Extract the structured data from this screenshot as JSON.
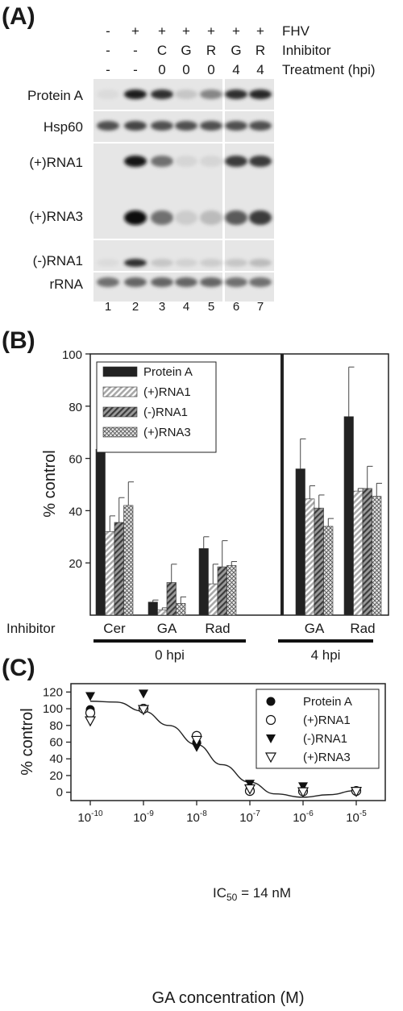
{
  "panels": {
    "a": "(A)",
    "b": "(B)",
    "c": "(C)"
  },
  "blot": {
    "header_rows": [
      {
        "label": "FHV",
        "cells": [
          "-",
          "+",
          "+",
          "+",
          "+",
          "+",
          "+"
        ]
      },
      {
        "label": "Inhibitor",
        "cells": [
          "-",
          "-",
          "C",
          "G",
          "R",
          "G",
          "R"
        ]
      },
      {
        "label": "Treatment (hpi)",
        "cells": [
          "-",
          "-",
          "0",
          "0",
          "0",
          "4",
          "4"
        ]
      }
    ],
    "row_labels": [
      "Protein A",
      "Hsp60",
      "(+)RNA1",
      "(+)RNA3",
      "(-)RNA1",
      "rRNA"
    ],
    "lanes": [
      "1",
      "2",
      "3",
      "4",
      "5",
      "6",
      "7"
    ]
  },
  "chart_data": [
    {
      "type": "bar",
      "panel": "B",
      "ylabel": "% control",
      "ylim": [
        0,
        100
      ],
      "yticks": [
        20,
        40,
        60,
        80,
        100
      ],
      "legend": "top-left",
      "inhibitor_label": "Inhibitor",
      "categories": [
        "Cer",
        "GA",
        "Rad",
        "GA",
        "Rad"
      ],
      "groups": [
        {
          "label": "0 hpi",
          "categories": [
            "Cer",
            "GA",
            "Rad"
          ]
        },
        {
          "label": "4 hpi",
          "categories": [
            "GA",
            "Rad"
          ]
        }
      ],
      "series": [
        {
          "name": "Protein A",
          "color": "#222222",
          "pattern": "solid",
          "values": [
            63.5,
            5,
            25.5,
            56,
            76
          ],
          "errors": [
            2.5,
            0.8,
            4.5,
            11.5,
            19
          ]
        },
        {
          "name": "(+)RNA1",
          "color": "#d8d8d8",
          "pattern": "diagonal-light",
          "values": [
            32,
            2,
            12,
            44.5,
            47.5
          ],
          "errors": [
            6,
            0.8,
            7.5,
            5,
            1
          ]
        },
        {
          "name": "(-)RNA1",
          "color": "#7a7a7a",
          "pattern": "diagonal-dark",
          "values": [
            35.5,
            12.5,
            18.5,
            41,
            48.5
          ],
          "errors": [
            9.5,
            7,
            10,
            5,
            8.5
          ]
        },
        {
          "name": "(+)RNA3",
          "color": "#cfcfcf",
          "pattern": "crosshatch",
          "values": [
            42,
            4.5,
            19,
            34,
            45.5
          ],
          "errors": [
            9,
            2.5,
            1.5,
            3,
            5
          ]
        }
      ]
    },
    {
      "type": "scatter",
      "panel": "C",
      "xlabel": "GA concentration (M)",
      "ylabel": "% control",
      "xscale": "log",
      "xlim": [
        1e-10,
        1e-05
      ],
      "xticks": [
        {
          "base": "10",
          "exp": "-10"
        },
        {
          "base": "10",
          "exp": "-9"
        },
        {
          "base": "10",
          "exp": "-8"
        },
        {
          "base": "10",
          "exp": "-7"
        },
        {
          "base": "10",
          "exp": "-6"
        },
        {
          "base": "10",
          "exp": "-5"
        }
      ],
      "ylim": [
        0,
        120
      ],
      "yticks": [
        0,
        20,
        40,
        60,
        80,
        100,
        120
      ],
      "legend": "top-right",
      "annotation": {
        "prefix": "IC",
        "sub": "50",
        "suffix": " = 14 nM"
      },
      "series": [
        {
          "name": "Protein A",
          "marker": "filled-circle",
          "points": [
            [
              1e-10,
              99
            ],
            [
              1e-09,
              100.5
            ],
            [
              1e-08,
              59.5
            ],
            [
              1e-07,
              3
            ],
            [
              1e-06,
              1
            ],
            [
              1e-05,
              1.5
            ]
          ]
        },
        {
          "name": "(+)RNA1",
          "marker": "open-circle",
          "points": [
            [
              1e-10,
              95
            ],
            [
              1e-09,
              100
            ],
            [
              1e-08,
              67.5
            ],
            [
              1e-07,
              1.5
            ],
            [
              1e-06,
              1
            ],
            [
              1e-05,
              1.5
            ]
          ]
        },
        {
          "name": "(-)RNA1",
          "marker": "filled-triangle-down",
          "points": [
            [
              1e-10,
              115
            ],
            [
              1e-09,
              118
            ],
            [
              1e-08,
              54
            ],
            [
              1e-07,
              10
            ],
            [
              1e-06,
              7
            ],
            [
              1e-05,
              1.5
            ]
          ]
        },
        {
          "name": "(+)RNA3",
          "marker": "open-triangle-down",
          "points": [
            [
              1e-10,
              85.5
            ],
            [
              1e-09,
              99
            ],
            [
              1e-08,
              62
            ],
            [
              1e-07,
              4
            ],
            [
              1e-06,
              0.5
            ],
            [
              1e-05,
              1
            ]
          ]
        }
      ],
      "fit_curve": {
        "x": [
          1e-10,
          3e-10,
          1e-09,
          3e-09,
          1e-08,
          3e-08,
          1e-07,
          3e-07,
          1e-06,
          3e-06,
          1e-05
        ],
        "y": [
          109,
          108,
          97,
          80,
          57,
          33,
          12,
          -2,
          -6,
          -3,
          2
        ]
      }
    }
  ]
}
